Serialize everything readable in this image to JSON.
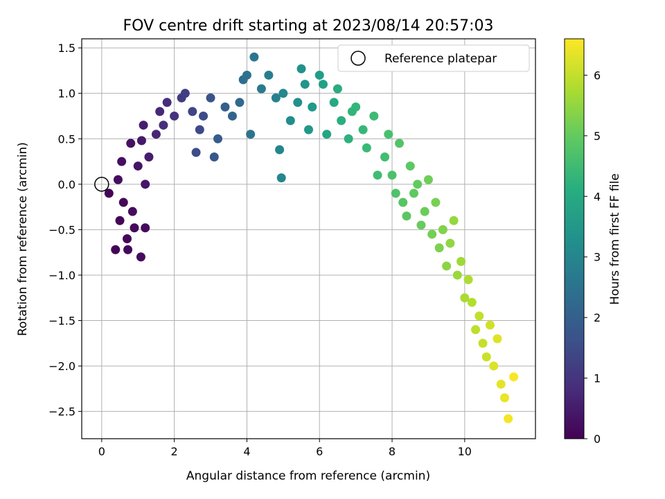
{
  "chart_data": {
    "type": "scatter",
    "title": "FOV centre drift starting at 2023/08/14 20:57:03",
    "xlabel": "Angular distance from reference (arcmin)",
    "ylabel": "Rotation from reference (arcmin)",
    "xlim": [
      -0.55,
      11.95
    ],
    "ylim": [
      -2.8,
      1.6
    ],
    "x_ticks": [
      0,
      2,
      4,
      6,
      8,
      10
    ],
    "x_tick_labels": [
      "0",
      "2",
      "4",
      "6",
      "8",
      "10"
    ],
    "y_ticks": [
      1.5,
      1.0,
      0.5,
      0.0,
      -0.5,
      -1.0,
      -1.5,
      -2.0,
      -2.5
    ],
    "y_tick_labels": [
      "1.5",
      "1.0",
      "0.5",
      "0.0",
      "−0.5",
      "−1.0",
      "−1.5",
      "−2.0",
      "−2.5"
    ],
    "grid": true,
    "legend": {
      "position": "top-right",
      "entries": [
        "Reference platepar"
      ]
    },
    "reference_point": {
      "name": "Reference platepar",
      "x": 0.0,
      "y": 0.0
    },
    "colorbar": {
      "label": "Hours from first FF file",
      "range": [
        0,
        6.6
      ],
      "ticks": [
        0,
        1,
        2,
        3,
        4,
        5,
        6
      ],
      "tick_labels": [
        "0",
        "1",
        "2",
        "3",
        "4",
        "5",
        "6"
      ],
      "colormap": "viridis"
    },
    "series": [
      {
        "name": "",
        "hours_max": 6.6,
        "points": [
          [
            0.38,
            -0.72,
            0.05
          ],
          [
            0.5,
            -0.4,
            0.08
          ],
          [
            0.6,
            -0.2,
            0.1
          ],
          [
            0.2,
            -0.1,
            0.05
          ],
          [
            0.7,
            -0.6,
            0.12
          ],
          [
            0.72,
            -0.72,
            0.14
          ],
          [
            0.9,
            -0.48,
            0.16
          ],
          [
            1.08,
            -0.8,
            0.18
          ],
          [
            1.2,
            -0.48,
            0.2
          ],
          [
            0.85,
            -0.3,
            0.2
          ],
          [
            0.45,
            0.05,
            0.22
          ],
          [
            0.55,
            0.25,
            0.25
          ],
          [
            0.8,
            0.45,
            0.3
          ],
          [
            1.0,
            0.2,
            0.35
          ],
          [
            1.2,
            0.0,
            0.4
          ],
          [
            1.1,
            0.48,
            0.45
          ],
          [
            1.3,
            0.3,
            0.5
          ],
          [
            1.15,
            0.65,
            0.55
          ],
          [
            1.5,
            0.55,
            0.65
          ],
          [
            1.6,
            0.8,
            0.75
          ],
          [
            1.8,
            0.9,
            0.85
          ],
          [
            1.7,
            0.65,
            0.9
          ],
          [
            2.0,
            0.75,
            1.0
          ],
          [
            2.2,
            0.95,
            1.15
          ],
          [
            2.3,
            1.0,
            1.2
          ],
          [
            2.5,
            0.8,
            1.35
          ],
          [
            2.7,
            0.6,
            1.45
          ],
          [
            2.8,
            0.75,
            1.5
          ],
          [
            2.6,
            0.35,
            1.55
          ],
          [
            3.0,
            0.95,
            1.7
          ],
          [
            3.1,
            0.3,
            1.8
          ],
          [
            3.2,
            0.5,
            1.9
          ],
          [
            3.4,
            0.85,
            2.0
          ],
          [
            3.6,
            0.75,
            2.1
          ],
          [
            3.8,
            0.9,
            2.25
          ],
          [
            3.9,
            1.15,
            2.35
          ],
          [
            4.0,
            1.2,
            2.45
          ],
          [
            4.1,
            0.55,
            2.55
          ],
          [
            4.2,
            1.4,
            2.6
          ],
          [
            4.4,
            1.05,
            2.7
          ],
          [
            4.6,
            1.2,
            2.8
          ],
          [
            4.8,
            0.95,
            2.9
          ],
          [
            4.9,
            0.38,
            3.0
          ],
          [
            4.95,
            0.07,
            3.05
          ],
          [
            5.0,
            1.0,
            3.1
          ],
          [
            5.2,
            0.7,
            3.2
          ],
          [
            5.4,
            0.9,
            3.3
          ],
          [
            5.5,
            1.27,
            3.35
          ],
          [
            5.6,
            1.1,
            3.45
          ],
          [
            5.7,
            0.6,
            3.5
          ],
          [
            5.8,
            0.85,
            3.55
          ],
          [
            6.0,
            1.2,
            3.65
          ],
          [
            6.1,
            1.1,
            3.75
          ],
          [
            6.2,
            0.55,
            3.85
          ],
          [
            6.4,
            0.9,
            3.95
          ],
          [
            6.5,
            1.05,
            4.05
          ],
          [
            6.6,
            0.7,
            4.1
          ],
          [
            6.8,
            0.5,
            4.2
          ],
          [
            6.9,
            0.8,
            4.3
          ],
          [
            7.0,
            0.85,
            4.35
          ],
          [
            7.2,
            0.6,
            4.4
          ],
          [
            7.3,
            0.4,
            4.45
          ],
          [
            7.5,
            0.75,
            4.5
          ],
          [
            7.6,
            0.1,
            4.55
          ],
          [
            7.8,
            0.3,
            4.6
          ],
          [
            7.9,
            0.55,
            4.65
          ],
          [
            8.0,
            0.1,
            4.7
          ],
          [
            8.1,
            -0.1,
            4.75
          ],
          [
            8.2,
            0.45,
            4.8
          ],
          [
            8.3,
            -0.2,
            4.85
          ],
          [
            8.4,
            -0.35,
            4.9
          ],
          [
            8.5,
            0.2,
            4.92
          ],
          [
            8.6,
            -0.1,
            4.95
          ],
          [
            8.7,
            0.0,
            5.0
          ],
          [
            8.8,
            -0.45,
            5.05
          ],
          [
            8.9,
            -0.3,
            5.1
          ],
          [
            9.0,
            0.05,
            5.15
          ],
          [
            9.1,
            -0.55,
            5.2
          ],
          [
            9.2,
            -0.2,
            5.25
          ],
          [
            9.3,
            -0.7,
            5.3
          ],
          [
            9.4,
            -0.5,
            5.35
          ],
          [
            9.5,
            -0.9,
            5.45
          ],
          [
            9.6,
            -0.65,
            5.5
          ],
          [
            9.7,
            -0.4,
            5.55
          ],
          [
            9.8,
            -1.0,
            5.6
          ],
          [
            9.9,
            -0.85,
            5.65
          ],
          [
            10.0,
            -1.25,
            5.75
          ],
          [
            10.1,
            -1.05,
            5.8
          ],
          [
            10.2,
            -1.3,
            5.85
          ],
          [
            10.3,
            -1.6,
            5.95
          ],
          [
            10.4,
            -1.45,
            6.0
          ],
          [
            10.5,
            -1.75,
            6.05
          ],
          [
            10.6,
            -1.9,
            6.1
          ],
          [
            10.7,
            -1.55,
            6.15
          ],
          [
            10.8,
            -2.0,
            6.25
          ],
          [
            10.9,
            -1.7,
            6.3
          ],
          [
            11.0,
            -2.2,
            6.35
          ],
          [
            11.1,
            -2.35,
            6.4
          ],
          [
            11.2,
            -2.58,
            6.5
          ],
          [
            11.35,
            -2.12,
            6.55
          ]
        ]
      }
    ]
  }
}
